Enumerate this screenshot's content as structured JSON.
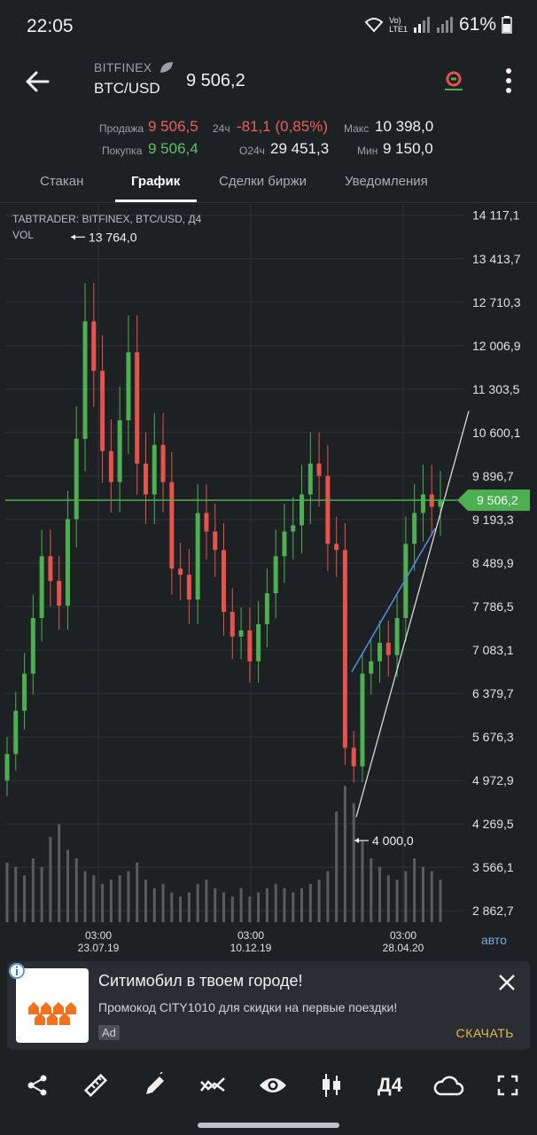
{
  "status_bar": {
    "time": "22:05",
    "net_top": "Vo)",
    "net_bottom": "LTE1",
    "battery": "61%"
  },
  "header": {
    "exchange": "BITFINEX",
    "pair": "BTC/USD",
    "last_price": "9 506,2"
  },
  "stats": {
    "sell_label": "Продажа",
    "sell_value": "9 506,5",
    "buy_label": "Покупка",
    "buy_value": "9 506,4",
    "change_label": "24ч",
    "change_value": "-81,1 (0,85%)",
    "volume_label": "O24ч",
    "volume_value": "29 451,3",
    "max_label": "Макс",
    "max_value": "10 398,0",
    "min_label": "Мин",
    "min_value": "9 150,0"
  },
  "tabs": [
    {
      "label": "Стакан"
    },
    {
      "label": "График"
    },
    {
      "label": "Сделки биржи"
    },
    {
      "label": "Уведомления"
    }
  ],
  "chart": {
    "title": "TABTRADER: BITFINEX, BTC/USD, Д4",
    "vol_label": "VOL",
    "high_marker": "13 764,0",
    "low_marker": "4 000,0",
    "current_price_tag": "9 506,2",
    "y_ticks": [
      "14 117,1",
      "13 413,7",
      "12 710,3",
      "12 006,9",
      "11 303,5",
      "10 600,1",
      "9 896,7",
      "9 193,3",
      "8 489,9",
      "7 786,5",
      "7 083,1",
      "6 379,7",
      "5 676,3",
      "4 972,9",
      "4 269,5",
      "3 566,1",
      "2 862,7"
    ],
    "x_ticks": [
      {
        "time": "03:00",
        "date": "23.07.19"
      },
      {
        "time": "03:00",
        "date": "10.12.19"
      },
      {
        "time": "03:00",
        "date": "28.04.20"
      }
    ],
    "auto_label": "авто",
    "colors": {
      "up": "#4caf50",
      "down": "#e5534b",
      "price_line": "#4caf50",
      "blue_line": "#4f8fe8",
      "white_line": "#e6e6e6"
    }
  },
  "chart_data": {
    "type": "candlestick",
    "title": "TABTRADER: BITFINEX, BTC/USD, Д4",
    "ylim": [
      2650,
      14300
    ],
    "x_labels": [
      "23.07.19",
      "10.12.19",
      "28.04.20"
    ],
    "close_series": [
      5400,
      6100,
      6700,
      7600,
      8600,
      8200,
      7800,
      9200,
      10500,
      12400,
      11600,
      10300,
      9800,
      10800,
      11900,
      10100,
      9600,
      10400,
      9800,
      8400,
      8300,
      7900,
      9300,
      9000,
      8700,
      7700,
      7300,
      7400,
      6900,
      7500,
      8000,
      8600,
      9000,
      9100,
      9600,
      10100,
      9900,
      8800,
      8700,
      5500,
      5200,
      6700,
      6900,
      7200,
      7000,
      7600,
      8800,
      9300,
      9600,
      9400,
      9506
    ],
    "volume_series": [
      28,
      26,
      22,
      30,
      26,
      40,
      46,
      34,
      30,
      24,
      22,
      18,
      20,
      22,
      24,
      28,
      20,
      16,
      18,
      14,
      12,
      14,
      18,
      20,
      16,
      14,
      12,
      16,
      12,
      14,
      16,
      18,
      16,
      14,
      16,
      18,
      20,
      24,
      52,
      64,
      56,
      38,
      30,
      26,
      22,
      20,
      24,
      30,
      26,
      24,
      20
    ],
    "annotations": {
      "high": 13764.0,
      "low": 4000.0,
      "current": 9506.2
    }
  },
  "ad": {
    "title": "Ситимобил в твоем городе!",
    "text": "Промокод CITY1010 для скидки на первые поездки!",
    "badge": "Ad",
    "cta": "СКАЧАТЬ"
  },
  "toolbar": {
    "timeframe": "Д4"
  }
}
